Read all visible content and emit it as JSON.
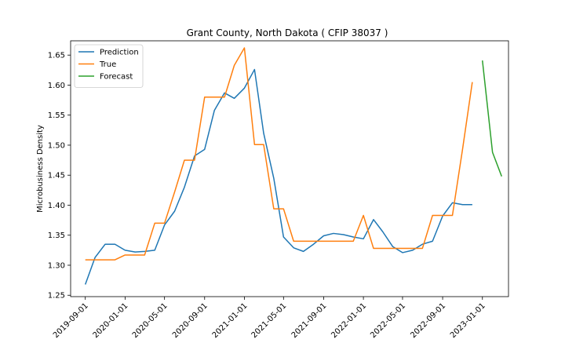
{
  "chart_data": {
    "type": "line",
    "title": "Grant County, North Dakota ( CFIP 38037 )",
    "xlabel": "",
    "ylabel": "Microbusiness Density",
    "xlim": [
      "2019-07-18",
      "2023-03-22"
    ],
    "ylim": [
      1.2477,
      1.6738
    ],
    "x_ticks": [
      "2019-09-01",
      "2020-01-01",
      "2020-05-01",
      "2020-09-01",
      "2021-01-01",
      "2021-05-01",
      "2021-09-01",
      "2022-01-01",
      "2022-05-01",
      "2022-09-01",
      "2023-01-01"
    ],
    "y_ticks": [
      1.25,
      1.3,
      1.35,
      1.4,
      1.45,
      1.5,
      1.55,
      1.6,
      1.65
    ],
    "y_tick_labels": [
      "1.25",
      "1.30",
      "1.35",
      "1.40",
      "1.45",
      "1.50",
      "1.55",
      "1.60",
      "1.65"
    ],
    "legend_position": "top-left",
    "grid": false,
    "series": [
      {
        "name": "Prediction",
        "color": "#1f77b4",
        "x": [
          "2019-09-01",
          "2019-10-01",
          "2019-11-01",
          "2019-12-01",
          "2020-01-01",
          "2020-02-01",
          "2020-03-01",
          "2020-04-01",
          "2020-05-01",
          "2020-06-01",
          "2020-07-01",
          "2020-08-01",
          "2020-09-01",
          "2020-10-01",
          "2020-11-01",
          "2020-12-01",
          "2021-01-01",
          "2021-02-01",
          "2021-03-01",
          "2021-04-01",
          "2021-05-01",
          "2021-06-01",
          "2021-07-01",
          "2021-08-01",
          "2021-09-01",
          "2021-10-01",
          "2021-11-01",
          "2021-12-01",
          "2022-01-01",
          "2022-02-01",
          "2022-03-01",
          "2022-04-01",
          "2022-05-01",
          "2022-06-01",
          "2022-07-01",
          "2022-08-01",
          "2022-09-01",
          "2022-10-01",
          "2022-11-01",
          "2022-12-01"
        ],
        "values": [
          1.268,
          1.313,
          1.335,
          1.335,
          1.325,
          1.322,
          1.323,
          1.325,
          1.367,
          1.39,
          1.43,
          1.482,
          1.493,
          1.558,
          1.587,
          1.578,
          1.595,
          1.626,
          1.52,
          1.445,
          1.347,
          1.329,
          1.323,
          1.335,
          1.349,
          1.353,
          1.351,
          1.347,
          1.344,
          1.376,
          1.356,
          1.331,
          1.321,
          1.325,
          1.335,
          1.34,
          1.382,
          1.404,
          1.401,
          1.401
        ]
      },
      {
        "name": "True",
        "color": "#ff7f0e",
        "x": [
          "2019-09-01",
          "2019-10-01",
          "2019-11-01",
          "2019-12-01",
          "2020-01-01",
          "2020-02-01",
          "2020-03-01",
          "2020-04-01",
          "2020-05-01",
          "2020-06-01",
          "2020-07-01",
          "2020-08-01",
          "2020-09-01",
          "2020-10-01",
          "2020-11-01",
          "2020-12-01",
          "2021-01-01",
          "2021-02-01",
          "2021-03-01",
          "2021-04-01",
          "2021-05-01",
          "2021-06-01",
          "2021-07-01",
          "2021-08-01",
          "2021-09-01",
          "2021-10-01",
          "2021-11-01",
          "2021-12-01",
          "2022-01-01",
          "2022-02-01",
          "2022-03-01",
          "2022-04-01",
          "2022-05-01",
          "2022-06-01",
          "2022-07-01",
          "2022-08-01",
          "2022-09-01",
          "2022-10-01",
          "2022-11-01",
          "2022-12-01"
        ],
        "values": [
          1.309,
          1.309,
          1.309,
          1.309,
          1.317,
          1.317,
          1.317,
          1.37,
          1.37,
          1.422,
          1.475,
          1.475,
          1.58,
          1.58,
          1.58,
          1.633,
          1.662,
          1.501,
          1.501,
          1.394,
          1.394,
          1.34,
          1.34,
          1.34,
          1.34,
          1.34,
          1.34,
          1.34,
          1.383,
          1.328,
          1.328,
          1.328,
          1.328,
          1.328,
          1.328,
          1.383,
          1.383,
          1.383,
          1.493,
          1.605
        ]
      },
      {
        "name": "Forecast",
        "color": "#2ca02c",
        "x": [
          "2023-01-01",
          "2023-02-01",
          "2023-03-01"
        ],
        "values": [
          1.641,
          1.488,
          1.448
        ]
      }
    ]
  }
}
